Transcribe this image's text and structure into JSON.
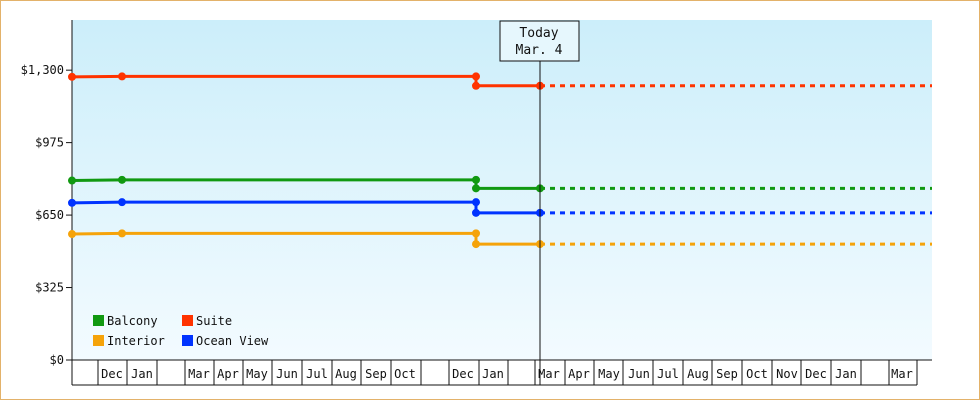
{
  "chart_data": {
    "type": "line",
    "title": "",
    "xlabel": "",
    "ylabel": "",
    "y_ticks": [
      "$0",
      "$325",
      "$650",
      "$975",
      "$1,300"
    ],
    "ylim": [
      0,
      1525
    ],
    "month_labels": [
      "Dec",
      "Jan",
      "Mar",
      "Apr",
      "May",
      "Jun",
      "Jul",
      "Aug",
      "Sep",
      "Oct",
      "Dec",
      "Jan",
      "Mar",
      "Apr",
      "May",
      "Jun",
      "Jul",
      "Aug",
      "Sep",
      "Oct",
      "Nov",
      "Dec",
      "Jan",
      "Mar"
    ],
    "today": {
      "line1": "Today",
      "line2": "Mar. 4"
    },
    "style": {
      "plot_bg_top": "#cceefa",
      "plot_bg_bottom": "#f3fbff",
      "frame": "#e3b26a"
    },
    "legend": {
      "placement": "bottom-left"
    },
    "series": [
      {
        "name": "Balcony",
        "color": "#119911",
        "points": [
          {
            "x": "Oct",
            "y": 805
          },
          {
            "x": "Dec",
            "y": 808
          },
          {
            "x": "Dec",
            "y": 808
          },
          {
            "x": "Dec",
            "y": 770
          },
          {
            "x": "Mar",
            "y": 770
          }
        ],
        "projection": {
          "from": "Mar",
          "to": "end",
          "y": 770
        }
      },
      {
        "name": "Suite",
        "color": "#ff3300",
        "points": [
          {
            "x": "Oct",
            "y": 1270
          },
          {
            "x": "Dec",
            "y": 1272
          },
          {
            "x": "Dec",
            "y": 1272
          },
          {
            "x": "Dec",
            "y": 1230
          },
          {
            "x": "Mar",
            "y": 1230
          }
        ],
        "projection": {
          "from": "Mar",
          "to": "end",
          "y": 1230
        }
      },
      {
        "name": "Interior",
        "color": "#f5a30a",
        "points": [
          {
            "x": "Oct",
            "y": 565
          },
          {
            "x": "Dec",
            "y": 568
          },
          {
            "x": "Dec",
            "y": 568
          },
          {
            "x": "Dec",
            "y": 520
          },
          {
            "x": "Mar",
            "y": 520
          }
        ],
        "projection": {
          "from": "Mar",
          "to": "end",
          "y": 520
        }
      },
      {
        "name": "Ocean View",
        "color": "#0033ff",
        "points": [
          {
            "x": "Oct",
            "y": 705
          },
          {
            "x": "Dec",
            "y": 708
          },
          {
            "x": "Dec",
            "y": 708
          },
          {
            "x": "Dec",
            "y": 660
          },
          {
            "x": "Mar",
            "y": 660
          }
        ],
        "projection": {
          "from": "Mar",
          "to": "end",
          "y": 660
        }
      }
    ]
  }
}
